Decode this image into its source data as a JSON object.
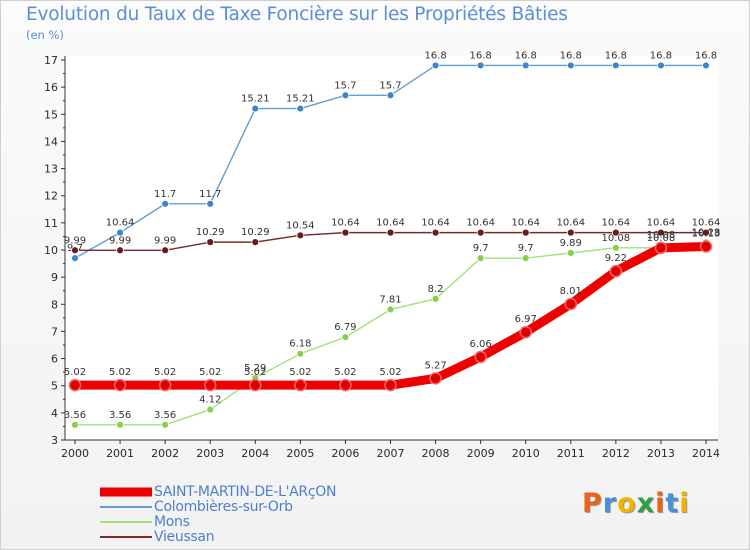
{
  "header": {
    "title": "Evolution du Taux de Taxe Foncière sur les Propriétés Bâties",
    "unit": "(en %)"
  },
  "brand": {
    "text": "Proxiti",
    "colors": [
      "#e8641b",
      "#4a90d9",
      "#f0b400",
      "#2e9e47",
      "#e8641b",
      "#4a90d9",
      "#f0b400"
    ]
  },
  "chart_data": {
    "type": "line",
    "title": "Evolution du Taux de Taxe Foncière sur les Propriétés Bâties",
    "ylabel": "(en %)",
    "xlabel": "",
    "ylim": [
      3,
      17
    ],
    "yticks": [
      3,
      4,
      5,
      6,
      7,
      8,
      9,
      10,
      11,
      12,
      13,
      14,
      15,
      16,
      17
    ],
    "x": [
      "2000",
      "2001",
      "2002",
      "2003",
      "2004",
      "2005",
      "2006",
      "2007",
      "2008",
      "2009",
      "2010",
      "2011",
      "2012",
      "2013",
      "2014"
    ],
    "legend_position": "bottom-left",
    "series": [
      {
        "name": "SAINT-MARTIN-DE-L'ARçON",
        "color": "#ee0000",
        "marker": "#dd0000",
        "emphasis": true,
        "values": [
          5.02,
          5.02,
          5.02,
          5.02,
          5.02,
          5.02,
          5.02,
          5.02,
          5.27,
          6.06,
          6.97,
          8.01,
          9.22,
          10.08,
          10.13
        ],
        "labels": [
          "5.02",
          "5.02",
          "5.02",
          "5.02",
          "5.02",
          "5.02",
          "5.02",
          "5.02",
          "5.27",
          "6.06",
          "6.97",
          "8.01",
          "9.22",
          "10.08",
          "10.13"
        ]
      },
      {
        "name": "Colombières-sur-Orb",
        "color": "#5f9fd6",
        "marker": "#3d87c9",
        "values": [
          9.7,
          10.64,
          11.7,
          11.7,
          15.21,
          15.21,
          15.7,
          15.7,
          16.8,
          16.8,
          16.8,
          16.8,
          16.8,
          16.8,
          16.8
        ],
        "labels": [
          "9.7",
          "10.64",
          "11.7",
          "11.7",
          "15.21",
          "15.21",
          "15.7",
          "15.7",
          "16.8",
          "16.8",
          "16.8",
          "16.8",
          "16.8",
          "16.8",
          "16.8"
        ]
      },
      {
        "name": "Mons",
        "color": "#a5df78",
        "marker": "#86d04c",
        "values": [
          3.56,
          3.56,
          3.56,
          4.12,
          5.29,
          6.18,
          6.79,
          7.81,
          8.2,
          9.7,
          9.7,
          9.89,
          10.08,
          10.08,
          10.28
        ],
        "labels": [
          "3.56",
          "3.56",
          "3.56",
          "4.12",
          "5.29",
          "6.18",
          "6.79",
          "7.81",
          "8.2",
          "9.7",
          "9.7",
          "9.89",
          "10.08",
          "10.08",
          "10.28"
        ]
      },
      {
        "name": "Vieussan",
        "color": "#7a2a2a",
        "marker": "#6a1c1c",
        "values": [
          9.99,
          9.99,
          9.99,
          10.29,
          10.29,
          10.54,
          10.64,
          10.64,
          10.64,
          10.64,
          10.64,
          10.64,
          10.64,
          10.64,
          10.64
        ],
        "labels": [
          "9.99",
          "9.99",
          "9.99",
          "10.29",
          "10.29",
          "10.54",
          "10.64",
          "10.64",
          "10.64",
          "10.64",
          "10.64",
          "10.64",
          "10.64",
          "10.64",
          "10.64"
        ]
      }
    ]
  }
}
